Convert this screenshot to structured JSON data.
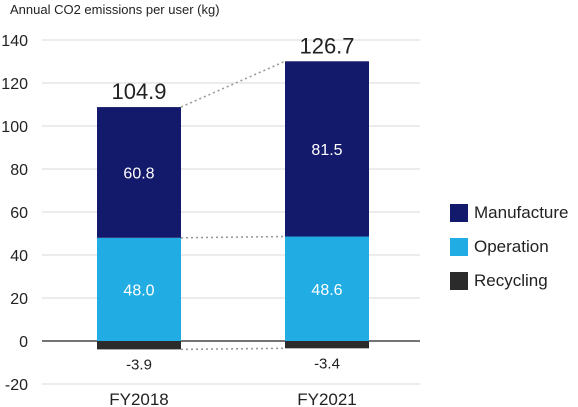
{
  "chart_data": {
    "type": "bar",
    "stacked": true,
    "title": "",
    "ylabel": "Annual CO2 emissions per user (kg)",
    "xlabel": "",
    "ylim": [
      -20,
      140
    ],
    "yticks": [
      -20,
      0,
      20,
      40,
      60,
      80,
      100,
      120,
      140
    ],
    "grid": true,
    "legend_position": "right",
    "categories": [
      "FY2018",
      "FY2021"
    ],
    "totals": [
      "104.9",
      "126.7"
    ],
    "series": [
      {
        "name": "Recycling",
        "values": [
          -3.9,
          -3.4
        ],
        "labels": [
          "-3.9",
          "-3.4"
        ],
        "color": "#2b2b2b"
      },
      {
        "name": "Operation",
        "values": [
          48.0,
          48.6
        ],
        "labels": [
          "48.0",
          "48.6"
        ],
        "color": "#21ace3"
      },
      {
        "name": "Manufacture",
        "values": [
          60.8,
          81.5
        ],
        "labels": [
          "60.8",
          "81.5"
        ],
        "color": "#141a6b"
      }
    ],
    "legend_order": [
      "Manufacture",
      "Operation",
      "Recycling"
    ]
  }
}
